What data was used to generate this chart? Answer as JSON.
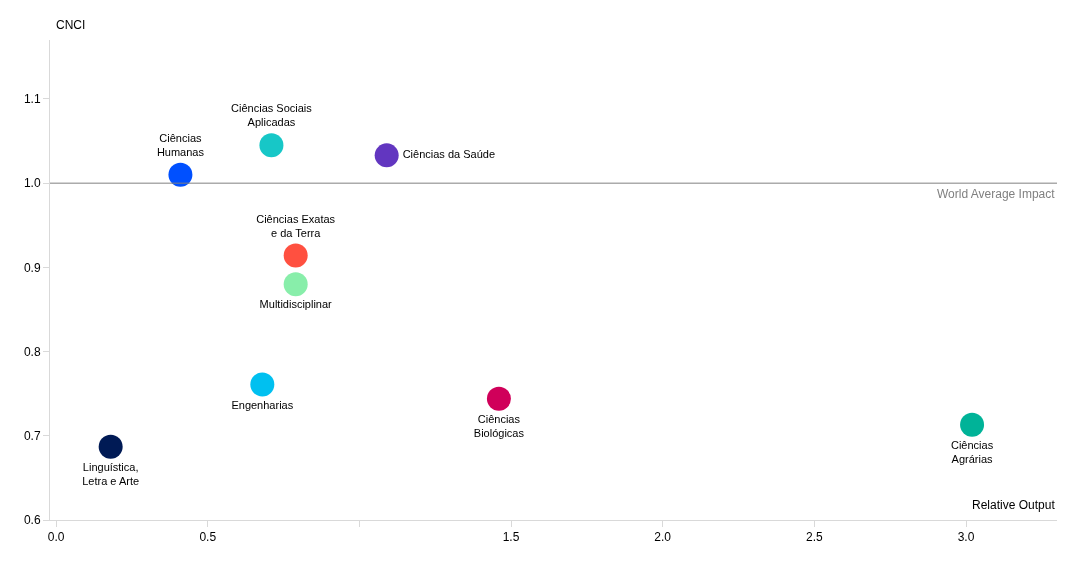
{
  "chart_data": {
    "type": "scatter",
    "xlabel": "Relative Output",
    "ylabel": "CNCI",
    "marker": "circle",
    "grid": false,
    "legend": false,
    "xlim": [
      -0.02,
      3.3
    ],
    "xticks": [
      {
        "value": 0,
        "label": "0.0"
      },
      0.5,
      {
        "value": 1,
        "label": null
      },
      1.5,
      {
        "value": 2,
        "label": "2.0"
      },
      2.5,
      {
        "value": 3,
        "label": "3.0"
      }
    ],
    "ylim": [
      0.6,
      1.17
    ],
    "yticks": [
      0.6,
      0.7,
      0.8,
      0.9,
      {
        "value": 1,
        "label": "1.0"
      },
      1.1
    ],
    "ref_lines": [
      {
        "axis": "y",
        "value": 1,
        "label": "World Average Impact",
        "color": "#808080"
      }
    ],
    "series": [
      {
        "name": "Ciências Humanas",
        "color": "#0050ff",
        "x": [
          0.41
        ],
        "values": [
          1.01
        ]
      },
      {
        "name": "Ciências Sociais Aplicadas",
        "color": "#17c7c7",
        "x": [
          0.71
        ],
        "values": [
          1.045
        ]
      },
      {
        "name": "Ciências da Saúde",
        "color": "#6236c0",
        "x": [
          1.09
        ],
        "values": [
          1.033
        ]
      },
      {
        "name": "Ciências Exatas e da Terra",
        "color": "#ff5040",
        "x": [
          0.79
        ],
        "values": [
          0.914
        ]
      },
      {
        "name": "Multidisciplinar",
        "color": "#88eeaa",
        "x": [
          0.79
        ],
        "values": [
          0.88
        ]
      },
      {
        "name": "Engenharias",
        "color": "#00c0f0",
        "x": [
          0.68
        ],
        "values": [
          0.761
        ]
      },
      {
        "name": "Ciências Biológicas",
        "color": "#d0005a",
        "x": [
          1.46
        ],
        "values": [
          0.744
        ]
      },
      {
        "name": "Linguística, Letra e Arte",
        "color": "#001a55",
        "x": [
          0.18
        ],
        "values": [
          0.687
        ]
      },
      {
        "name": "Ciências Agrárias",
        "color": "#00b398",
        "x": [
          3.02
        ],
        "values": [
          0.713
        ]
      }
    ]
  }
}
